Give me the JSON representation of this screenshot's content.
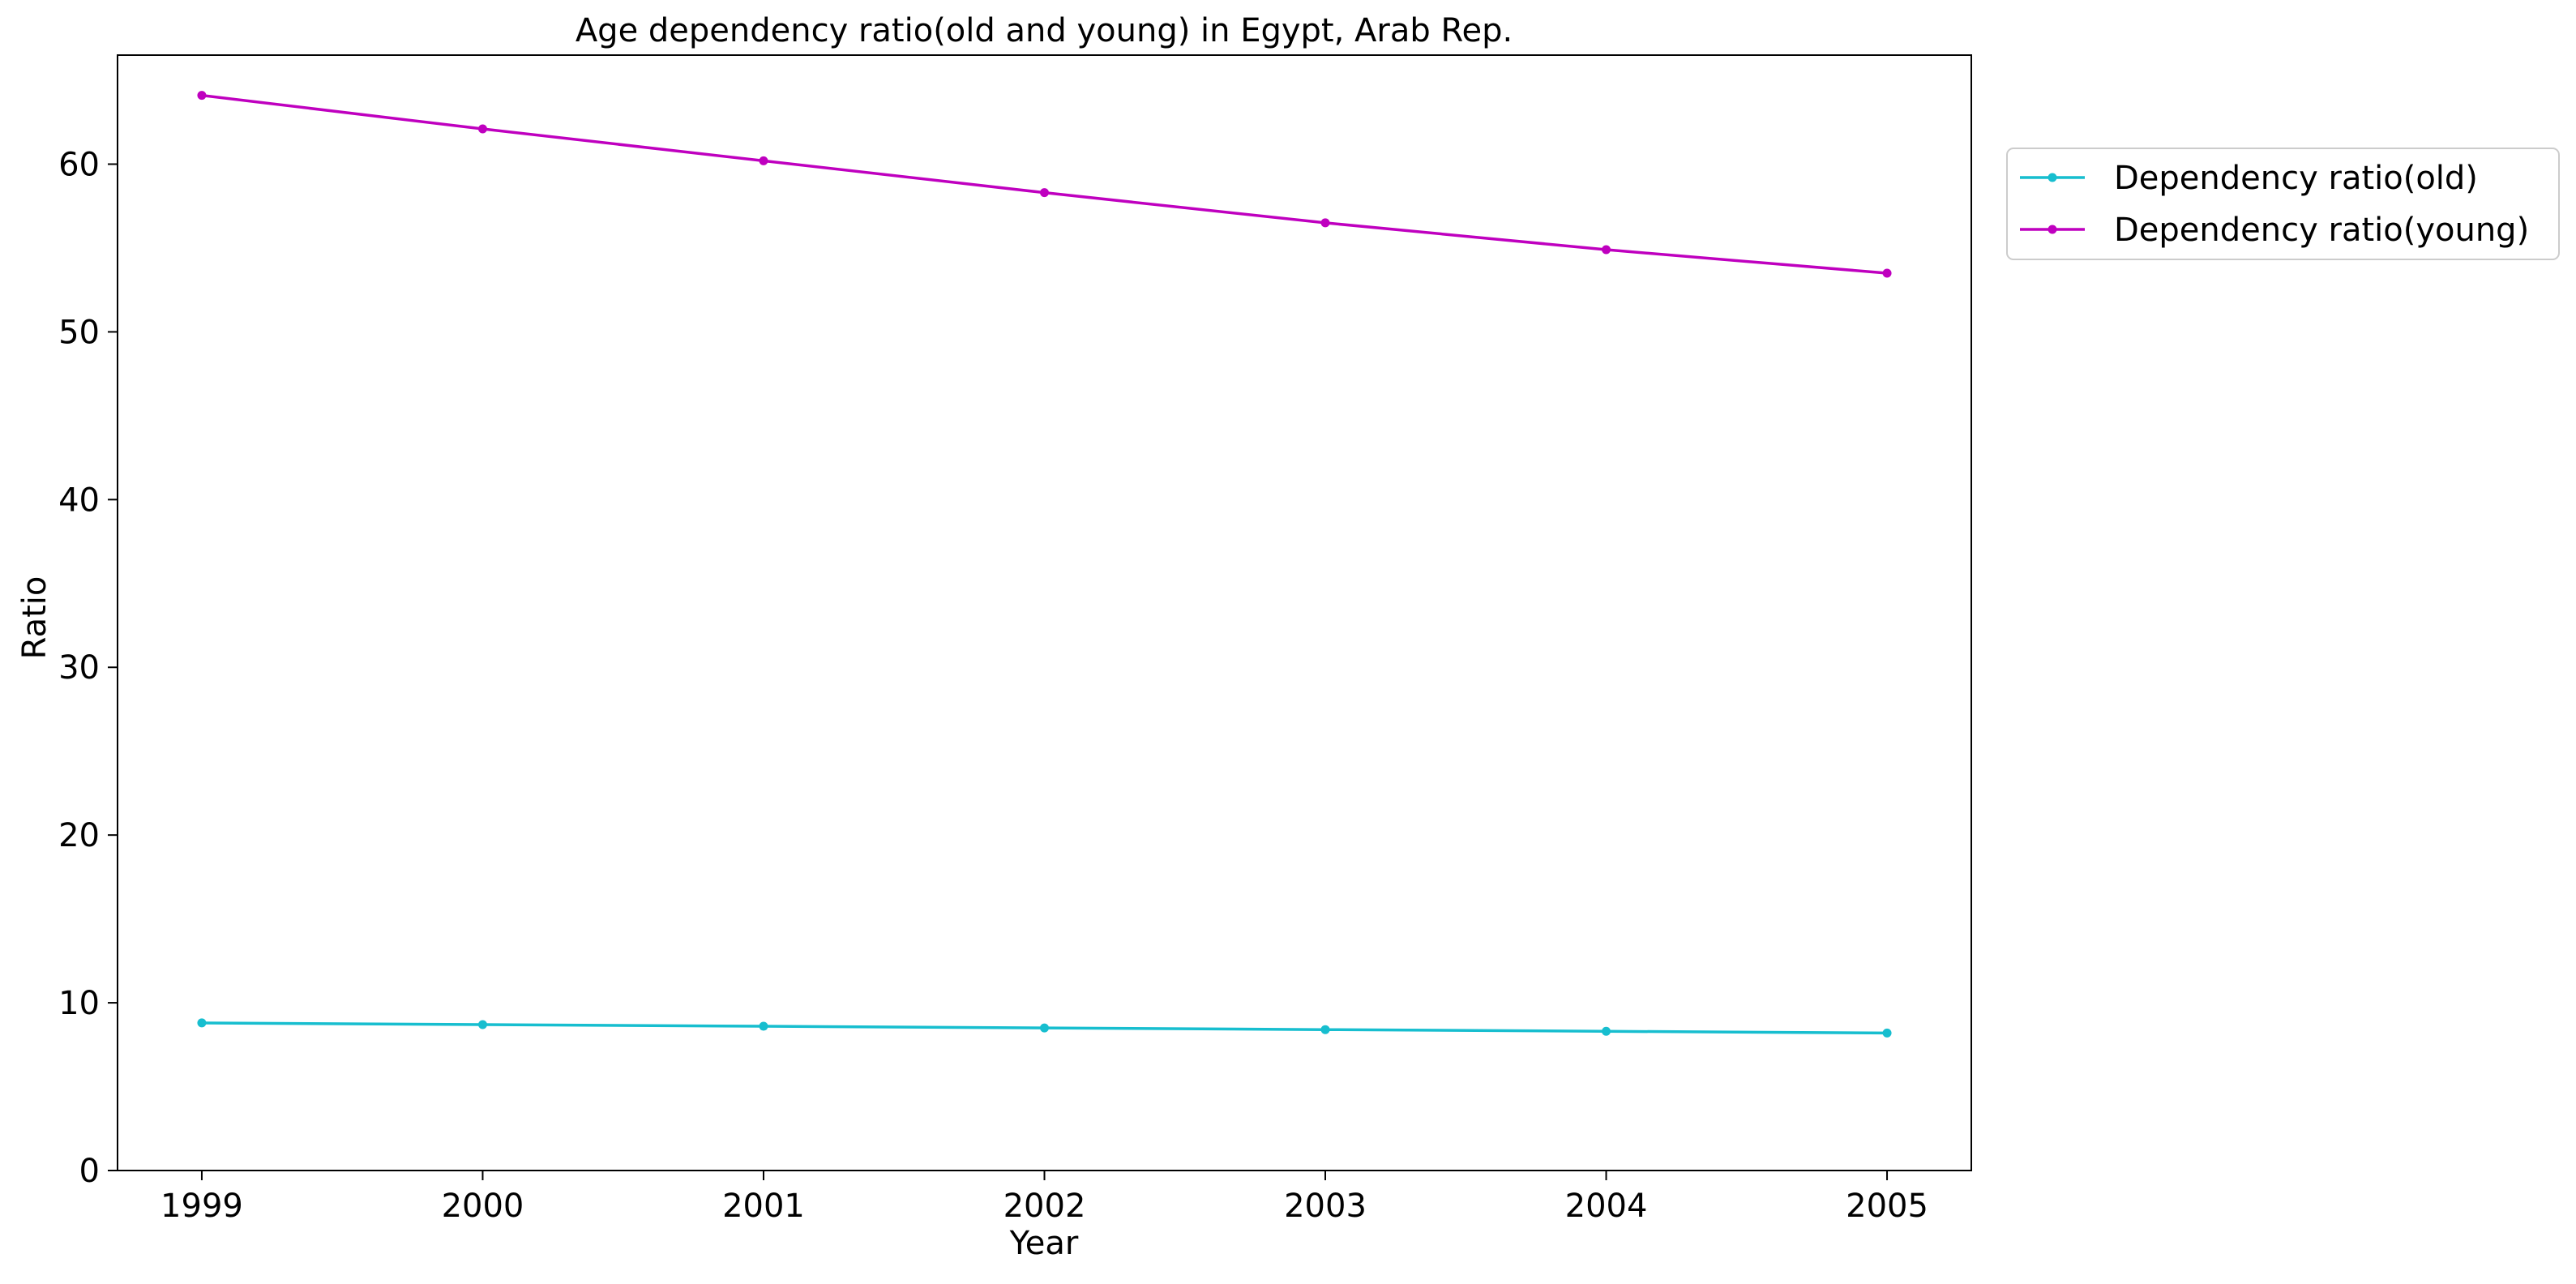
{
  "chart_data": {
    "type": "line",
    "title": "Age dependency ratio(old and young) in Egypt, Arab Rep.",
    "xlabel": "Year",
    "ylabel": "Ratio",
    "x": [
      "1999",
      "2000",
      "2001",
      "2002",
      "2003",
      "2004",
      "2005"
    ],
    "xlim": [
      1998.7,
      2005.3
    ],
    "ylim": [
      0,
      66.5
    ],
    "yticks": [
      0,
      10,
      20,
      30,
      40,
      50,
      60
    ],
    "grid": false,
    "legend_position": "outside-top-right",
    "series": [
      {
        "name": "Dependency ratio(old)",
        "color": "#17becf",
        "marker": "circle",
        "values": [
          8.8,
          8.7,
          8.6,
          8.5,
          8.4,
          8.3,
          8.2
        ]
      },
      {
        "name": "Dependency ratio(young)",
        "color": "#bf00bf",
        "marker": "circle",
        "values": [
          64.1,
          62.1,
          60.2,
          58.3,
          56.5,
          54.9,
          53.5
        ]
      }
    ]
  }
}
